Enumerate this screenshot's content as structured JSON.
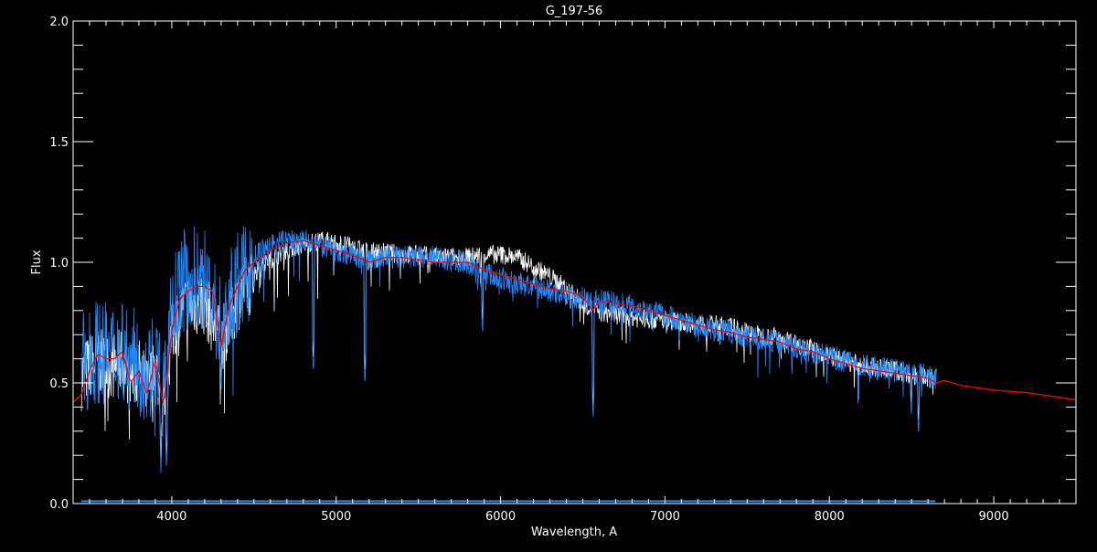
{
  "chart_data": {
    "type": "line",
    "title": "G_197-56",
    "xlabel": "Wavelength, A",
    "ylabel": "Flux",
    "xlim": [
      3400,
      9500
    ],
    "ylim": [
      0,
      2.0
    ],
    "x_ticks": [
      4000,
      5000,
      6000,
      7000,
      8000,
      9000
    ],
    "x_tick_labels": [
      "4000",
      "5000",
      "6000",
      "7000",
      "8000",
      "9000"
    ],
    "y_ticks": [
      0,
      0.5,
      1.0,
      1.5,
      2.0
    ],
    "y_tick_labels": [
      "0.0",
      "0.5",
      "1.0",
      "1.5",
      "2.0"
    ],
    "grid": false,
    "background": "#000000",
    "series": [
      {
        "color": "#ffffff",
        "x": [
          3450,
          3500,
          3550,
          3600,
          3650,
          3700,
          3750,
          3800,
          3850,
          3900,
          3950,
          4000,
          4050,
          4100,
          4200,
          4300,
          4400,
          4500,
          4600,
          4700,
          4800,
          4900,
          5000,
          5100,
          5200,
          5300,
          5400,
          5500,
          5600,
          5700,
          5800,
          5900,
          6000,
          6100,
          6200,
          6300,
          6400,
          6500,
          6600,
          6700,
          6800,
          6900,
          7000,
          7100,
          7200,
          7300,
          7400,
          7500,
          7600,
          7700,
          7800,
          7900,
          8000,
          8100,
          8200,
          8300,
          8400,
          8500,
          8600,
          8650
        ],
        "y": [
          0.55,
          0.6,
          0.62,
          0.6,
          0.6,
          0.62,
          0.55,
          0.58,
          0.5,
          0.6,
          0.45,
          0.72,
          0.82,
          0.85,
          0.86,
          0.7,
          0.88,
          0.96,
          1.02,
          1.06,
          1.08,
          1.1,
          1.09,
          1.07,
          1.05,
          1.05,
          1.04,
          1.04,
          1.03,
          1.03,
          1.03,
          1.04,
          1.04,
          1.03,
          0.99,
          0.95,
          0.9,
          0.84,
          0.8,
          0.79,
          0.78,
          0.77,
          0.77,
          0.76,
          0.75,
          0.75,
          0.74,
          0.72,
          0.7,
          0.7,
          0.67,
          0.65,
          0.62,
          0.6,
          0.58,
          0.57,
          0.56,
          0.54,
          0.53,
          0.53
        ]
      },
      {
        "color": "#1e88ff",
        "x": [
          3450,
          3500,
          3550,
          3600,
          3650,
          3700,
          3750,
          3800,
          3850,
          3900,
          3950,
          4000,
          4050,
          4100,
          4200,
          4300,
          4400,
          4500,
          4600,
          4700,
          4800,
          4900,
          5000,
          5100,
          5200,
          5300,
          5400,
          5500,
          5600,
          5700,
          5800,
          5900,
          6000,
          6100,
          6200,
          6300,
          6400,
          6500,
          6600,
          6700,
          6800,
          6900,
          7000,
          7100,
          7200,
          7300,
          7400,
          7500,
          7600,
          7700,
          7800,
          7900,
          8000,
          8100,
          8200,
          8300,
          8400,
          8500,
          8600,
          8650
        ],
        "y": [
          0.6,
          0.66,
          0.68,
          0.66,
          0.66,
          0.7,
          0.62,
          0.66,
          0.58,
          0.66,
          0.5,
          0.82,
          0.95,
          0.98,
          0.98,
          0.78,
          0.95,
          1.03,
          1.08,
          1.1,
          1.1,
          1.08,
          1.06,
          1.04,
          1.02,
          1.03,
          1.03,
          1.03,
          1.03,
          1.02,
          1.01,
          0.97,
          0.94,
          0.92,
          0.91,
          0.89,
          0.88,
          0.86,
          0.85,
          0.84,
          0.83,
          0.81,
          0.79,
          0.77,
          0.75,
          0.73,
          0.72,
          0.7,
          0.69,
          0.68,
          0.66,
          0.64,
          0.62,
          0.6,
          0.58,
          0.57,
          0.56,
          0.55,
          0.54,
          0.53
        ]
      },
      {
        "color": "#ff0000",
        "x": [
          3400,
          3450,
          3500,
          3550,
          3600,
          3650,
          3700,
          3750,
          3800,
          3850,
          3900,
          3950,
          4000,
          4050,
          4100,
          4150,
          4200,
          4250,
          4300,
          4350,
          4400,
          4450,
          4500,
          4600,
          4700,
          4800,
          4900,
          5000,
          5100,
          5200,
          5300,
          5400,
          5500,
          5600,
          5700,
          5800,
          5900,
          6000,
          6100,
          6200,
          6300,
          6400,
          6500,
          6560,
          6600,
          6700,
          6800,
          6900,
          7000,
          7100,
          7200,
          7300,
          7400,
          7500,
          7600,
          7700,
          7800,
          7900,
          8000,
          8100,
          8200,
          8300,
          8400,
          8500,
          8600,
          8650,
          8700,
          8800,
          9000,
          9200,
          9400,
          9500
        ],
        "y": [
          0.42,
          0.45,
          0.55,
          0.62,
          0.6,
          0.6,
          0.63,
          0.5,
          0.55,
          0.45,
          0.6,
          0.4,
          0.72,
          0.85,
          0.88,
          0.9,
          0.9,
          0.88,
          0.65,
          0.82,
          0.9,
          0.97,
          1.0,
          1.05,
          1.08,
          1.09,
          1.07,
          1.05,
          1.03,
          1.0,
          1.02,
          1.02,
          1.01,
          1.0,
          1.0,
          1.0,
          0.97,
          0.95,
          0.93,
          0.91,
          0.89,
          0.88,
          0.86,
          0.8,
          0.84,
          0.83,
          0.82,
          0.8,
          0.78,
          0.76,
          0.74,
          0.72,
          0.71,
          0.69,
          0.68,
          0.67,
          0.64,
          0.63,
          0.6,
          0.58,
          0.56,
          0.55,
          0.54,
          0.53,
          0.52,
          0.5,
          0.51,
          0.49,
          0.47,
          0.46,
          0.44,
          0.43
        ]
      },
      {
        "color": "#1e88ff",
        "x": [
          3450,
          8650
        ],
        "y": [
          0.01,
          0.01
        ]
      }
    ],
    "absorption_features": [
      {
        "x": 3934,
        "y": 0.12
      },
      {
        "x": 3968,
        "y": 0.13
      },
      {
        "x": 4300,
        "y": 0.45
      },
      {
        "x": 4861,
        "y": 0.52
      },
      {
        "x": 5175,
        "y": 0.47
      },
      {
        "x": 5890,
        "y": 0.68
      },
      {
        "x": 6563,
        "y": 0.33
      },
      {
        "x": 8498,
        "y": 0.34
      },
      {
        "x": 8542,
        "y": 0.26
      },
      {
        "x": 8662,
        "y": 0.5
      }
    ]
  }
}
